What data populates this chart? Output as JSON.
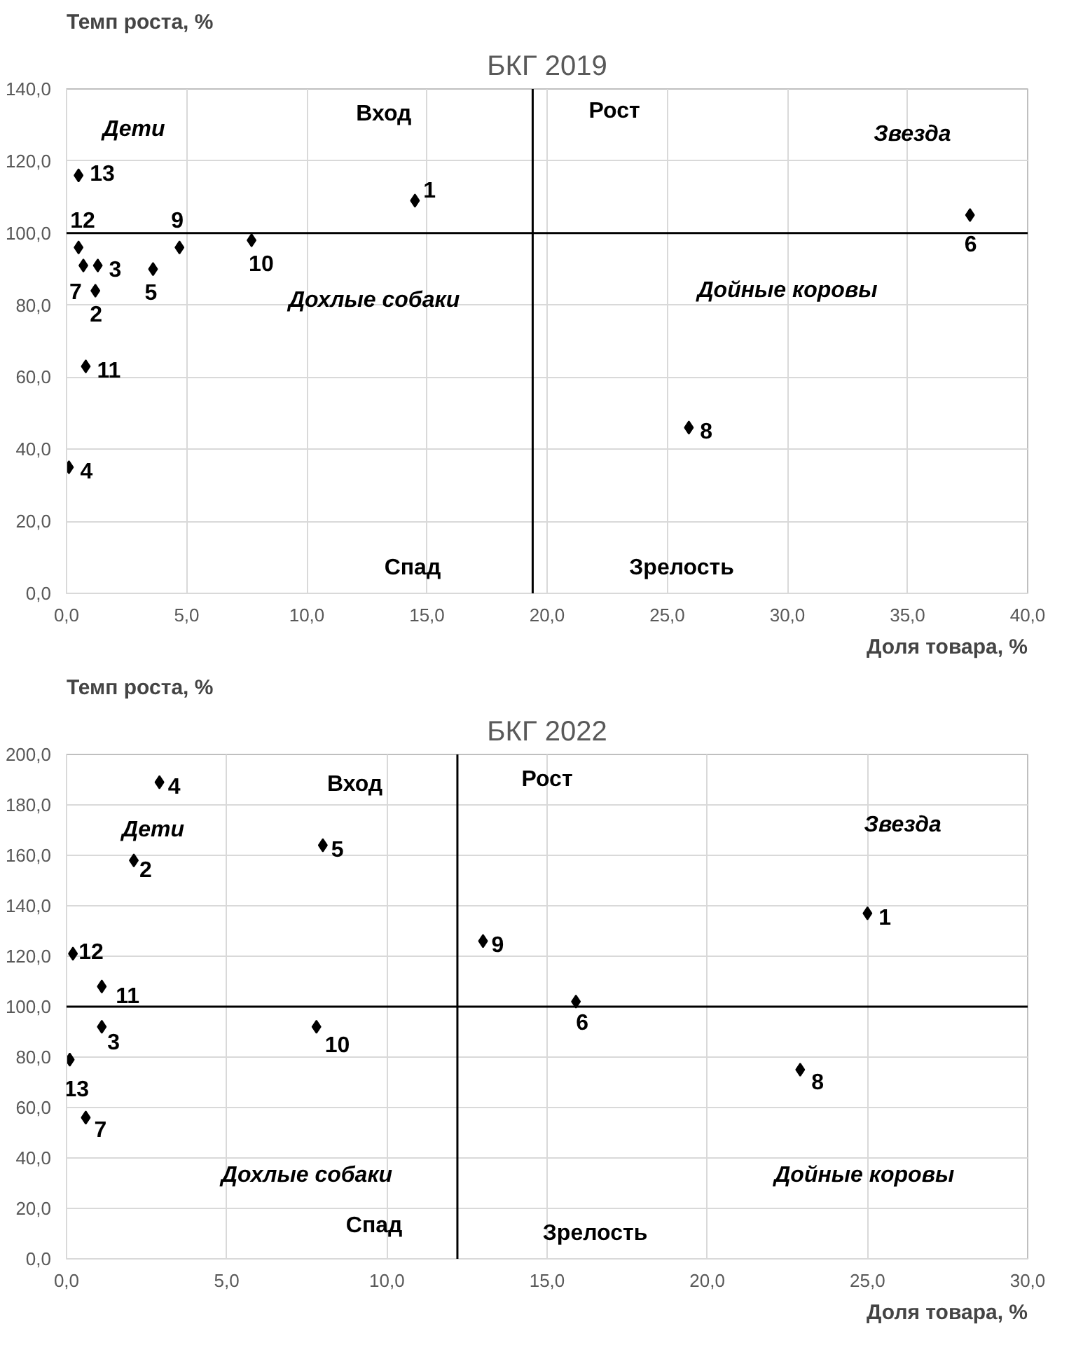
{
  "chart_data": [
    {
      "type": "scatter",
      "title": "БКГ 2019",
      "xlabel": "Доля товара, %",
      "ylabel": "Темп роста, %",
      "marker": "diamond",
      "grid": true,
      "xlim": [
        0,
        40
      ],
      "ylim": [
        0,
        140
      ],
      "xticks": [
        {
          "value": 0,
          "label": "0,0"
        },
        {
          "value": 5,
          "label": "5,0"
        },
        {
          "value": 10,
          "label": "10,0"
        },
        {
          "value": 15,
          "label": "15,0"
        },
        {
          "value": 20,
          "label": "20,0"
        },
        {
          "value": 25,
          "label": "25,0"
        },
        {
          "value": 30,
          "label": "30,0"
        },
        {
          "value": 35,
          "label": "35,0"
        },
        {
          "value": 40,
          "label": "40,0"
        }
      ],
      "yticks": [
        {
          "value": 0,
          "label": "0,0"
        },
        {
          "value": 20,
          "label": "20,0"
        },
        {
          "value": 40,
          "label": "40,0"
        },
        {
          "value": 60,
          "label": "60,0"
        },
        {
          "value": 80,
          "label": "80,0"
        },
        {
          "value": 100,
          "label": "100,0"
        },
        {
          "value": 120,
          "label": "120,0"
        },
        {
          "value": 140,
          "label": "140,0"
        }
      ],
      "series": [
        {
          "color": "#000000",
          "x": [
            14.5,
            1.2,
            1.3,
            0.1,
            3.6,
            37.6,
            0.7,
            25.9,
            4.7,
            7.7,
            0.8,
            0.5,
            0.5
          ],
          "values": [
            109,
            84,
            91,
            35,
            90,
            105,
            91,
            46,
            96,
            98,
            63,
            96,
            116
          ]
        }
      ],
      "ref_lines": [
        {
          "axis": "x",
          "value": 19.4,
          "color": "#000000"
        },
        {
          "axis": "y",
          "value": 100,
          "color": "#000000"
        }
      ],
      "annotations": [
        "Дети",
        "Звезда",
        "Дохлые собаки",
        "Дойные коровы",
        "Вход",
        "Рост",
        "Спад",
        "Зрелость",
        {
          "text": "1",
          "x": 14.5,
          "y": 109
        },
        {
          "text": "2",
          "x": 1.2,
          "y": 84
        },
        {
          "text": "3",
          "x": 1.3,
          "y": 91
        },
        {
          "text": "4",
          "x": 0.1,
          "y": 35
        },
        {
          "text": "5",
          "x": 3.6,
          "y": 90
        },
        {
          "text": "6",
          "x": 37.6,
          "y": 105
        },
        {
          "text": "7",
          "x": 0.7,
          "y": 91
        },
        {
          "text": "8",
          "x": 25.9,
          "y": 46
        },
        {
          "text": "9",
          "x": 4.7,
          "y": 96
        },
        {
          "text": "10",
          "x": 7.7,
          "y": 98
        },
        {
          "text": "11",
          "x": 0.8,
          "y": 63
        },
        {
          "text": "12",
          "x": 0.5,
          "y": 96
        },
        {
          "text": "13",
          "x": 0.5,
          "y": 116
        }
      ]
    },
    {
      "type": "scatter",
      "title": "БКГ 2022",
      "xlabel": "Доля товара, %",
      "ylabel": "Темп роста, %",
      "marker": "diamond",
      "grid": true,
      "xlim": [
        0,
        30
      ],
      "ylim": [
        0,
        200
      ],
      "xticks": [
        {
          "value": 0,
          "label": "0,0"
        },
        {
          "value": 5,
          "label": "5,0"
        },
        {
          "value": 10,
          "label": "10,0"
        },
        {
          "value": 15,
          "label": "15,0"
        },
        {
          "value": 20,
          "label": "20,0"
        },
        {
          "value": 25,
          "label": "25,0"
        },
        {
          "value": 30,
          "label": "30,0"
        }
      ],
      "yticks": [
        {
          "value": 0,
          "label": "0,0"
        },
        {
          "value": 20,
          "label": "20,0"
        },
        {
          "value": 40,
          "label": "40,0"
        },
        {
          "value": 60,
          "label": "60,0"
        },
        {
          "value": 80,
          "label": "80,0"
        },
        {
          "value": 100,
          "label": "100,0"
        },
        {
          "value": 120,
          "label": "120,0"
        },
        {
          "value": 140,
          "label": "140,0"
        },
        {
          "value": 160,
          "label": "160,0"
        },
        {
          "value": 180,
          "label": "180,0"
        },
        {
          "value": 200,
          "label": "200,0"
        }
      ],
      "series": [
        {
          "color": "#000000",
          "x": [
            25.0,
            2.1,
            1.1,
            2.9,
            8.0,
            15.9,
            0.6,
            22.9,
            13.0,
            7.8,
            1.1,
            0.2,
            0.1
          ],
          "values": [
            137,
            158,
            92,
            189,
            164,
            102,
            56,
            75,
            126,
            92,
            108,
            121,
            79
          ]
        }
      ],
      "ref_lines": [
        {
          "axis": "x",
          "value": 12.2,
          "color": "#000000"
        },
        {
          "axis": "y",
          "value": 100,
          "color": "#000000"
        }
      ],
      "annotations": [
        "Дети",
        "Звезда",
        "Дохлые собаки",
        "Дойные коровы",
        "Вход",
        "Рост",
        "Спад",
        "Зрелость",
        {
          "text": "1",
          "x": 25.0,
          "y": 137
        },
        {
          "text": "2",
          "x": 2.1,
          "y": 158
        },
        {
          "text": "3",
          "x": 1.1,
          "y": 92
        },
        {
          "text": "4",
          "x": 2.9,
          "y": 189
        },
        {
          "text": "5",
          "x": 8.0,
          "y": 164
        },
        {
          "text": "6",
          "x": 15.9,
          "y": 102
        },
        {
          "text": "7",
          "x": 0.6,
          "y": 56
        },
        {
          "text": "8",
          "x": 22.9,
          "y": 75
        },
        {
          "text": "9",
          "x": 13.0,
          "y": 126
        },
        {
          "text": "10",
          "x": 7.8,
          "y": 92
        },
        {
          "text": "11",
          "x": 1.1,
          "y": 108
        },
        {
          "text": "12",
          "x": 0.2,
          "y": 121
        },
        {
          "text": "13",
          "x": 0.1,
          "y": 79
        }
      ]
    }
  ]
}
